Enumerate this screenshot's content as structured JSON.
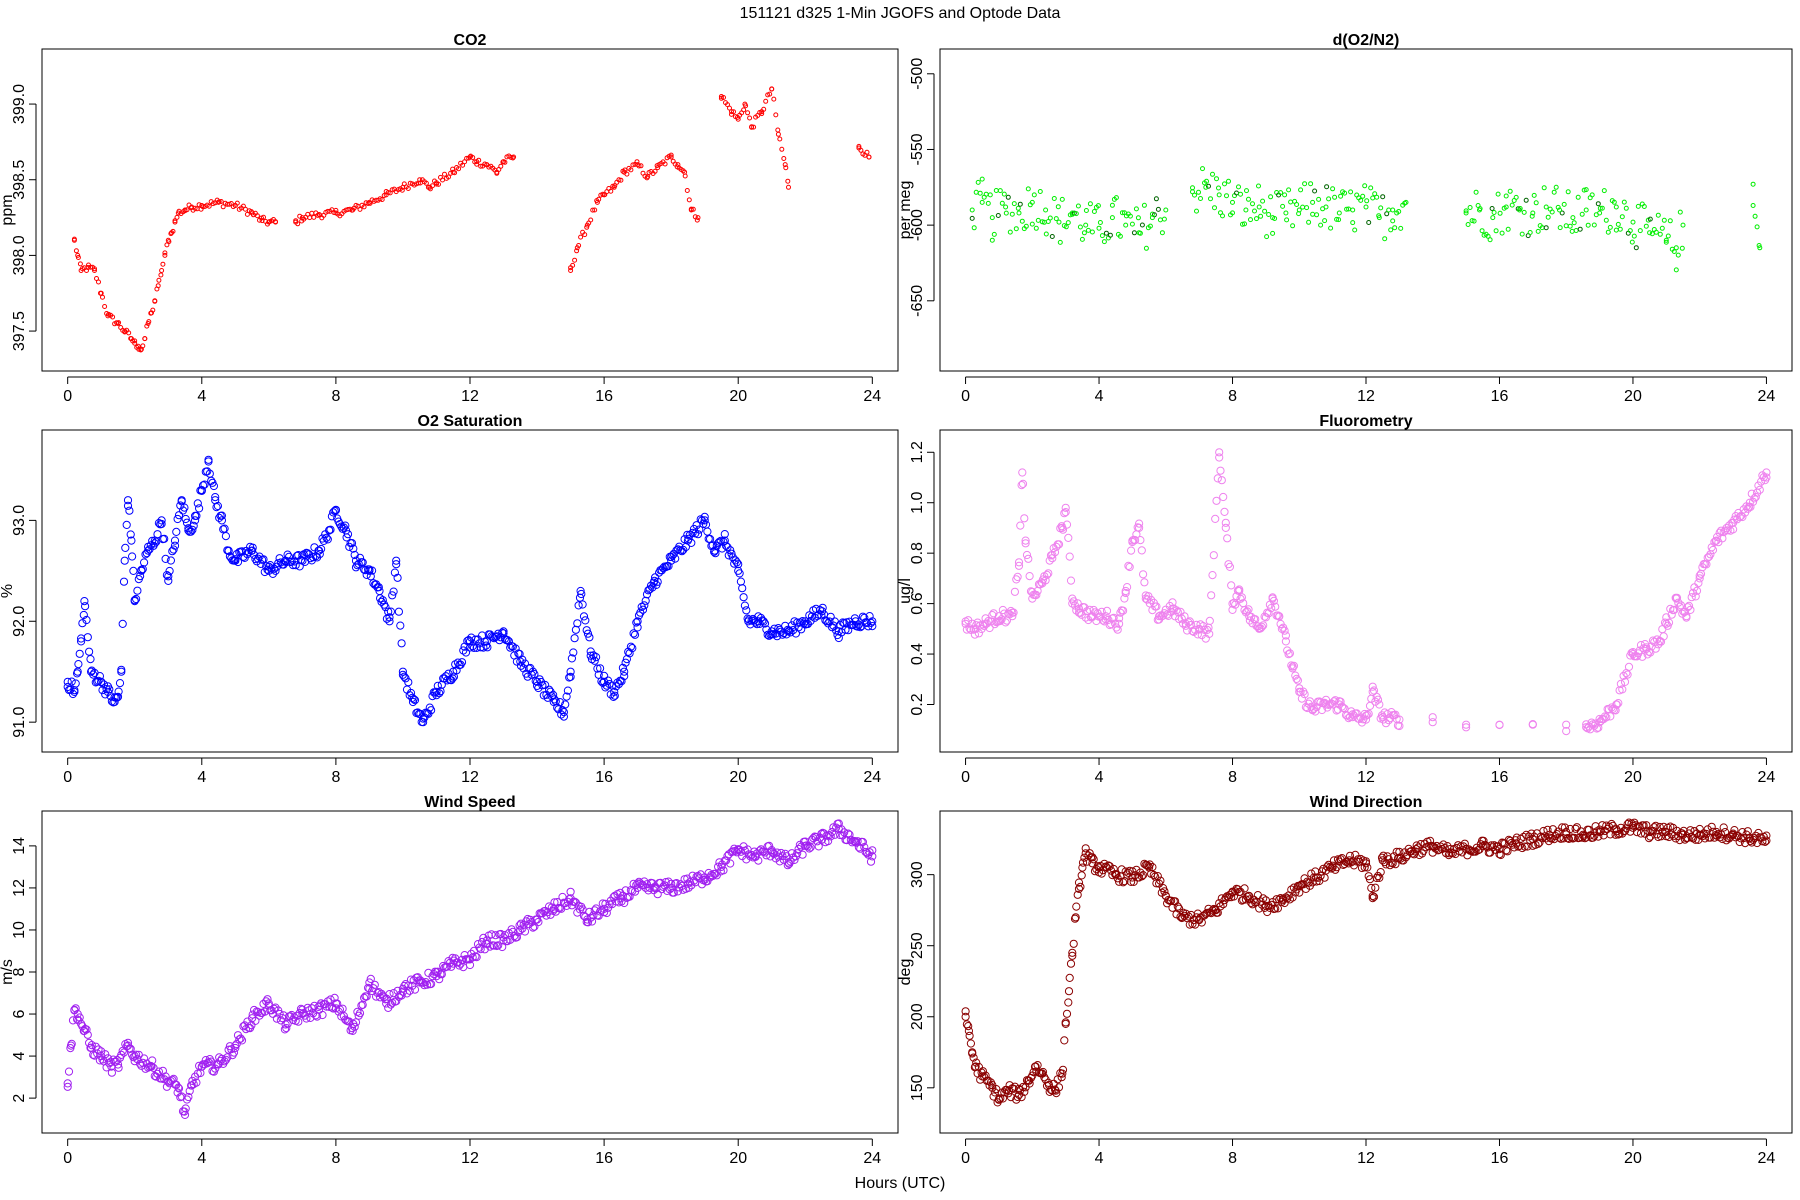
{
  "figure": {
    "title": "151121   d325   1-Min  JGOFS and Optode Data",
    "xlabel": "Hours (UTC)"
  },
  "chart_data": [
    {
      "id": "co2",
      "type": "scatter",
      "title": "CO2",
      "ylabel": "ppm",
      "xlabel": "",
      "xlim": [
        0,
        24
      ],
      "ylim": [
        397.3,
        399.3
      ],
      "xticks": [
        0,
        4,
        8,
        12,
        16,
        20,
        24
      ],
      "yticks": [
        397.5,
        398.0,
        398.5,
        399.0
      ],
      "ytick_labels": [
        "397.5",
        "398.0",
        "398.5",
        "399.0"
      ],
      "color": "#ff0000",
      "secondary_color": "",
      "marker_size": "small",
      "series": [
        {
          "name": "CO2",
          "x": [
            0.2,
            0.3,
            0.4,
            0.6,
            0.8,
            1.0,
            1.2,
            1.5,
            1.7,
            1.9,
            2.0,
            2.1,
            2.2,
            2.3,
            2.4,
            2.5,
            2.6,
            2.7,
            2.8,
            2.9,
            3.0,
            3.1,
            3.2,
            3.3,
            3.5,
            3.7,
            4.0,
            4.5,
            5.0,
            5.5,
            5.8,
            6.0,
            6.2,
            6.8,
            7.0,
            7.5,
            8.0,
            8.5,
            9.0,
            9.5,
            10.0,
            10.5,
            10.8,
            11.0,
            11.5,
            12.0,
            12.2,
            12.5,
            12.8,
            13.0,
            13.3,
            15.0,
            15.2,
            15.5,
            15.8,
            16.0,
            16.3,
            16.6,
            17.0,
            17.3,
            17.6,
            18.0,
            18.2,
            18.4,
            18.6,
            18.8,
            19.5,
            19.8,
            20.0,
            20.2,
            20.4,
            20.7,
            21.0,
            21.2,
            21.4,
            21.5,
            23.6,
            23.9
          ],
          "y": [
            398.1,
            398.0,
            397.9,
            397.92,
            397.9,
            397.75,
            397.6,
            397.55,
            397.5,
            397.45,
            397.42,
            397.4,
            397.38,
            397.45,
            397.55,
            397.62,
            397.7,
            397.8,
            397.9,
            398.0,
            398.1,
            398.15,
            398.22,
            398.28,
            398.3,
            398.32,
            398.33,
            398.35,
            398.33,
            398.28,
            398.23,
            398.22,
            398.22,
            398.22,
            398.25,
            398.27,
            398.28,
            398.3,
            398.35,
            398.4,
            398.45,
            398.5,
            398.45,
            398.48,
            398.55,
            398.65,
            398.62,
            398.6,
            398.55,
            398.62,
            398.65,
            397.9,
            398.05,
            398.2,
            398.35,
            398.4,
            398.45,
            398.55,
            398.6,
            398.52,
            398.58,
            398.65,
            398.6,
            398.55,
            398.3,
            398.25,
            399.05,
            398.95,
            398.9,
            399.0,
            398.85,
            398.95,
            399.1,
            398.8,
            398.6,
            398.45,
            398.72,
            398.65
          ]
        }
      ]
    },
    {
      "id": "do2n2",
      "type": "scatter",
      "title": "d(O2/N2)",
      "ylabel": "per meg",
      "xlabel": "",
      "xlim": [
        0,
        24
      ],
      "ylim": [
        -690,
        -490
      ],
      "xticks": [
        0,
        4,
        8,
        12,
        16,
        20,
        24
      ],
      "yticks": [
        -650,
        -600,
        -550,
        -500
      ],
      "ytick_labels": [
        "-650",
        "-600",
        "-550",
        "-500"
      ],
      "color": "#00ee00",
      "secondary_color": "#006400",
      "marker_size": "small",
      "series": [
        {
          "name": "d(O2/N2)",
          "x": [
            0.2,
            0.5,
            0.8,
            1.2,
            1.6,
            2.0,
            2.4,
            2.8,
            3.2,
            3.6,
            4.0,
            4.4,
            4.8,
            5.2,
            5.6,
            6.0,
            6.8,
            7.2,
            7.6,
            8.0,
            8.4,
            8.8,
            9.2,
            9.6,
            10.0,
            10.4,
            10.8,
            11.2,
            11.6,
            12.0,
            12.4,
            12.8,
            13.2,
            15.0,
            15.4,
            15.8,
            16.2,
            16.6,
            17.0,
            17.4,
            17.8,
            18.2,
            18.6,
            19.0,
            19.5,
            20.0,
            20.5,
            21.0,
            21.3,
            21.5,
            23.6,
            23.8
          ],
          "y": [
            -590,
            -585,
            -595,
            -588,
            -592,
            -585,
            -590,
            -598,
            -592,
            -600,
            -602,
            -595,
            -600,
            -605,
            -595,
            -590,
            -578,
            -575,
            -580,
            -585,
            -590,
            -588,
            -595,
            -592,
            -590,
            -585,
            -588,
            -592,
            -590,
            -588,
            -595,
            -590,
            -585,
            -592,
            -590,
            -595,
            -588,
            -590,
            -592,
            -588,
            -590,
            -595,
            -590,
            -592,
            -588,
            -598,
            -605,
            -610,
            -615,
            -600,
            -587,
            -615
          ]
        }
      ]
    },
    {
      "id": "o2sat",
      "type": "scatter",
      "title": "O2 Saturation",
      "ylabel": "%",
      "xlabel": "",
      "xlim": [
        0,
        24
      ],
      "ylim": [
        90.8,
        93.8
      ],
      "xticks": [
        0,
        4,
        8,
        12,
        16,
        20,
        24
      ],
      "yticks": [
        91.0,
        92.0,
        93.0
      ],
      "ytick_labels": [
        "91.0",
        "92.0",
        "93.0"
      ],
      "color": "#0000ff",
      "secondary_color": "",
      "marker_size": "medium",
      "series": [
        {
          "name": "O2 Saturation",
          "x": [
            0,
            0.2,
            0.3,
            0.4,
            0.5,
            0.7,
            1.0,
            1.2,
            1.4,
            1.5,
            1.6,
            1.7,
            1.8,
            1.9,
            2.0,
            2.2,
            2.4,
            2.6,
            2.8,
            3.0,
            3.2,
            3.4,
            3.6,
            3.8,
            4.0,
            4.2,
            4.4,
            4.6,
            4.8,
            5.0,
            5.5,
            6.0,
            6.5,
            7.0,
            7.5,
            7.8,
            8.0,
            8.3,
            8.6,
            9.0,
            9.3,
            9.6,
            9.8,
            10.0,
            10.3,
            10.6,
            11.0,
            11.5,
            12.0,
            12.5,
            13.0,
            13.5,
            14.0,
            14.5,
            14.8,
            15.0,
            15.3,
            15.6,
            16.0,
            16.3,
            16.6,
            17.0,
            17.5,
            18.0,
            18.5,
            19.0,
            19.3,
            19.6,
            20.0,
            20.3,
            20.6,
            21.0,
            21.5,
            22.0,
            22.5,
            23.0,
            23.5,
            24.0
          ],
          "y": [
            91.4,
            91.3,
            91.5,
            91.8,
            92.2,
            91.5,
            91.4,
            91.3,
            91.2,
            91.25,
            91.5,
            92.6,
            93.2,
            92.8,
            92.2,
            92.5,
            92.7,
            92.8,
            93.0,
            92.4,
            92.8,
            93.2,
            92.9,
            93.0,
            93.3,
            93.6,
            93.2,
            93.0,
            92.7,
            92.6,
            92.7,
            92.5,
            92.6,
            92.6,
            92.7,
            92.9,
            93.1,
            92.9,
            92.6,
            92.5,
            92.3,
            92.0,
            92.6,
            91.5,
            91.2,
            91.0,
            91.3,
            91.5,
            91.8,
            91.8,
            91.9,
            91.6,
            91.4,
            91.2,
            91.1,
            91.5,
            92.3,
            91.7,
            91.4,
            91.3,
            91.5,
            92.0,
            92.4,
            92.6,
            92.8,
            93.0,
            92.7,
            92.8,
            92.5,
            92.0,
            92.0,
            91.9,
            91.9,
            92.0,
            92.1,
            91.9,
            92.0,
            92.0
          ]
        }
      ]
    },
    {
      "id": "fluor",
      "type": "scatter",
      "title": "Fluorometry",
      "ylabel": "ug/l",
      "xlabel": "",
      "xlim": [
        0,
        24
      ],
      "ylim": [
        0.05,
        1.25
      ],
      "xticks": [
        0,
        4,
        8,
        12,
        16,
        20,
        24
      ],
      "yticks": [
        0.2,
        0.4,
        0.6,
        0.8,
        1.0,
        1.2
      ],
      "ytick_labels": [
        "0.2",
        "0.4",
        "0.6",
        "0.8",
        "1.0",
        "1.2"
      ],
      "color": "#ee82ee",
      "secondary_color": "",
      "marker_size": "medium",
      "series": [
        {
          "name": "Fluorometry",
          "x": [
            0,
            0.3,
            0.6,
            1.0,
            1.4,
            1.6,
            1.7,
            1.8,
            2.0,
            2.3,
            2.6,
            2.9,
            3.0,
            3.2,
            3.4,
            3.8,
            4.2,
            4.6,
            4.8,
            5.0,
            5.2,
            5.4,
            5.8,
            6.2,
            6.6,
            7.0,
            7.3,
            7.6,
            7.8,
            8.0,
            8.2,
            8.5,
            8.8,
            9.2,
            9.4,
            9.6,
            9.8,
            10.0,
            10.4,
            10.8,
            11.2,
            11.6,
            12.0,
            12.2,
            12.5,
            13.0,
            14.0,
            15.0,
            16.0,
            17.0,
            18.0,
            18.6,
            19.0,
            19.5,
            20.0,
            20.4,
            20.8,
            21.0,
            21.3,
            21.6,
            22.0,
            22.5,
            23.0,
            23.5,
            24.0
          ],
          "y": [
            0.52,
            0.5,
            0.52,
            0.55,
            0.55,
            0.75,
            1.12,
            0.85,
            0.62,
            0.68,
            0.78,
            0.9,
            0.98,
            0.62,
            0.58,
            0.55,
            0.55,
            0.52,
            0.65,
            0.85,
            0.9,
            0.62,
            0.55,
            0.58,
            0.52,
            0.5,
            0.48,
            1.2,
            0.9,
            0.6,
            0.65,
            0.55,
            0.5,
            0.62,
            0.55,
            0.45,
            0.35,
            0.25,
            0.18,
            0.2,
            0.2,
            0.15,
            0.14,
            0.25,
            0.15,
            0.14,
            0.13,
            0.12,
            0.12,
            0.12,
            0.12,
            0.11,
            0.13,
            0.2,
            0.4,
            0.42,
            0.45,
            0.52,
            0.62,
            0.55,
            0.7,
            0.85,
            0.92,
            1.0,
            1.12
          ]
        }
      ]
    },
    {
      "id": "windspeed",
      "type": "scatter",
      "title": "Wind Speed",
      "ylabel": "m/s",
      "xlabel": "",
      "xlim": [
        0,
        24
      ],
      "ylim": [
        0.8,
        15.2
      ],
      "xticks": [
        0,
        4,
        8,
        12,
        16,
        20,
        24
      ],
      "yticks": [
        2,
        4,
        6,
        8,
        10,
        12,
        14
      ],
      "ytick_labels": [
        "2",
        "4",
        "6",
        "8",
        "10",
        "12",
        "14"
      ],
      "color": "#a020f0",
      "secondary_color": "",
      "marker_size": "medium",
      "series": [
        {
          "name": "Wind Speed",
          "x": [
            0,
            0.1,
            0.2,
            0.3,
            0.5,
            0.7,
            1.0,
            1.3,
            1.5,
            1.8,
            2.0,
            2.5,
            3.0,
            3.3,
            3.5,
            3.7,
            4.0,
            4.5,
            5.0,
            5.5,
            6.0,
            6.5,
            7.0,
            7.5,
            8.0,
            8.5,
            9.0,
            9.5,
            10.0,
            10.5,
            11.0,
            11.5,
            12.0,
            12.5,
            13.0,
            13.5,
            14.0,
            14.5,
            15.0,
            15.5,
            16.0,
            16.5,
            17.0,
            17.5,
            18.0,
            18.5,
            19.0,
            19.5,
            20.0,
            20.5,
            21.0,
            21.5,
            22.0,
            22.5,
            23.0,
            23.5,
            24.0
          ],
          "y": [
            2.7,
            4.5,
            6.2,
            6.0,
            5.2,
            4.4,
            4.0,
            3.5,
            3.6,
            4.5,
            4.0,
            3.5,
            2.8,
            2.5,
            1.2,
            2.6,
            3.5,
            3.6,
            4.5,
            5.8,
            6.5,
            5.5,
            6.0,
            6.2,
            6.5,
            5.2,
            7.5,
            6.5,
            7.2,
            7.5,
            7.8,
            8.4,
            8.6,
            9.5,
            9.5,
            10.0,
            10.5,
            11.0,
            11.5,
            10.5,
            11.0,
            11.5,
            12.0,
            12.0,
            12.0,
            12.2,
            12.5,
            13.0,
            13.8,
            13.5,
            13.8,
            13.2,
            14.0,
            14.3,
            14.8,
            14.2,
            13.5
          ]
        }
      ]
    },
    {
      "id": "winddir",
      "type": "scatter",
      "title": "Wind Direction",
      "ylabel": "deg",
      "xlabel": "",
      "xlim": [
        0,
        24
      ],
      "ylim": [
        125,
        338
      ],
      "xticks": [
        0,
        4,
        8,
        12,
        16,
        20,
        24
      ],
      "yticks": [
        150,
        200,
        250,
        300
      ],
      "ytick_labels": [
        "150",
        "200",
        "250",
        "300"
      ],
      "color": "#8b0000",
      "secondary_color": "",
      "marker_size": "medium",
      "series": [
        {
          "name": "Wind Direction",
          "x": [
            0,
            0.1,
            0.2,
            0.3,
            0.5,
            0.8,
            1.0,
            1.3,
            1.6,
            1.9,
            2.1,
            2.3,
            2.5,
            2.7,
            2.9,
            3.0,
            3.1,
            3.2,
            3.3,
            3.4,
            3.5,
            3.6,
            3.8,
            4.0,
            4.5,
            5.0,
            5.5,
            6.0,
            6.5,
            7.0,
            7.5,
            8.0,
            8.5,
            9.0,
            9.5,
            10.0,
            10.5,
            11.0,
            11.5,
            12.0,
            12.2,
            12.5,
            13.0,
            13.5,
            14.0,
            14.5,
            15.0,
            15.5,
            16.0,
            16.5,
            17.0,
            17.5,
            18.0,
            18.5,
            19.0,
            19.5,
            20.0,
            20.5,
            21.0,
            21.5,
            22.0,
            22.5,
            23.0,
            23.5,
            24.0
          ],
          "y": [
            200,
            190,
            175,
            165,
            158,
            150,
            142,
            148,
            145,
            155,
            165,
            160,
            152,
            148,
            160,
            195,
            218,
            245,
            270,
            290,
            305,
            315,
            308,
            305,
            300,
            298,
            305,
            285,
            270,
            268,
            275,
            288,
            285,
            278,
            282,
            292,
            298,
            305,
            310,
            308,
            285,
            310,
            312,
            318,
            320,
            315,
            318,
            320,
            318,
            322,
            325,
            328,
            330,
            328,
            330,
            332,
            333,
            330,
            330,
            328,
            328,
            330,
            328,
            326,
            324
          ]
        }
      ]
    }
  ]
}
